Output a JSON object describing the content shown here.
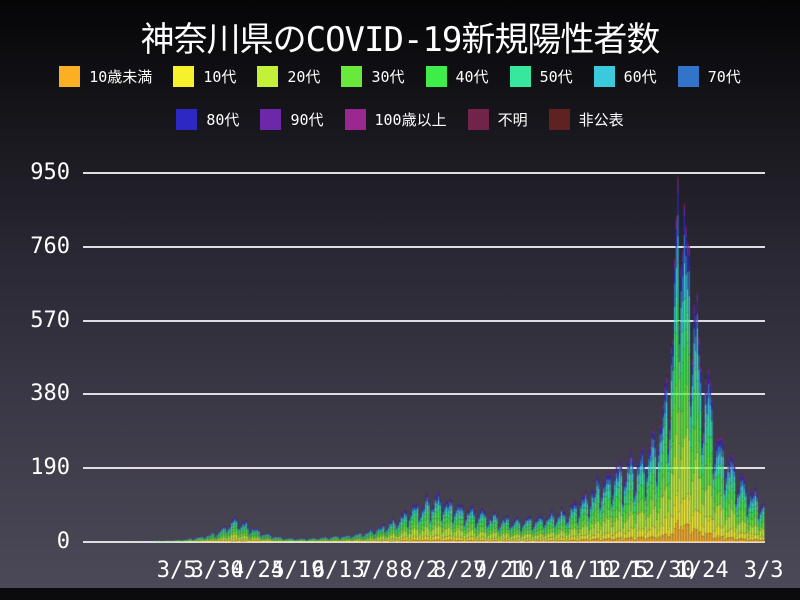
{
  "title": "神奈川県のCOVID-19新規陽性者数",
  "colors": {
    "background_top": "#050506",
    "background_bottom": "#4b4857",
    "grid": "#dfdde3",
    "text": "#ffffff"
  },
  "chart_data": {
    "type": "bar",
    "stacked": true,
    "title": "神奈川県のCOVID-19新規陽性者数",
    "xlabel": "",
    "ylabel": "",
    "grid": "horizontal",
    "legend_position": "top",
    "ylim": [
      0,
      1010
    ],
    "y_ticks": [
      0,
      190,
      380,
      570,
      760,
      950
    ],
    "x_ticks": [
      {
        "label": "3/5",
        "day": 57
      },
      {
        "label": "3/30",
        "day": 82
      },
      {
        "label": "4/24",
        "day": 107
      },
      {
        "label": "5/19",
        "day": 132
      },
      {
        "label": "6/13",
        "day": 157
      },
      {
        "label": "7/8",
        "day": 182
      },
      {
        "label": "8/2",
        "day": 207
      },
      {
        "label": "8/27",
        "day": 232
      },
      {
        "label": "9/21",
        "day": 257
      },
      {
        "label": "10/16",
        "day": 282
      },
      {
        "label": "11/10",
        "day": 307
      },
      {
        "label": "12/5",
        "day": 332
      },
      {
        "label": "12/30",
        "day": 357
      },
      {
        "label": "1/24",
        "day": 382
      },
      {
        "label": "3/3",
        "day": 420
      }
    ],
    "age_groups": [
      {
        "name": "10歳未満",
        "color": "#fbb024",
        "share": 0.05
      },
      {
        "name": "10代",
        "color": "#f6f12b",
        "share": 0.09
      },
      {
        "name": "20代",
        "color": "#c3f139",
        "share": 0.19
      },
      {
        "name": "30代",
        "color": "#69e93c",
        "share": 0.15
      },
      {
        "name": "40代",
        "color": "#3eec4a",
        "share": 0.14
      },
      {
        "name": "50代",
        "color": "#38e79e",
        "share": 0.12
      },
      {
        "name": "60代",
        "color": "#3ac9dd",
        "share": 0.09
      },
      {
        "name": "70代",
        "color": "#3274ca",
        "share": 0.07
      },
      {
        "name": "80代",
        "color": "#2d28c2",
        "share": 0.05
      },
      {
        "name": "90代",
        "color": "#6c28a8",
        "share": 0.028
      },
      {
        "name": "100歳以上",
        "color": "#9b2891",
        "share": 0.005
      },
      {
        "name": "不明",
        "color": "#71234a",
        "share": 0.006
      },
      {
        "name": "非公表",
        "color": "#602121",
        "share": 0.006
      }
    ],
    "legend_row_split": 8,
    "totals_waypoints": [
      [
        0,
        1
      ],
      [
        4,
        0
      ],
      [
        22,
        0
      ],
      [
        27,
        1
      ],
      [
        35,
        1
      ],
      [
        41,
        2
      ],
      [
        47,
        3
      ],
      [
        53,
        4
      ],
      [
        57,
        5
      ],
      [
        63,
        7
      ],
      [
        69,
        11
      ],
      [
        75,
        16
      ],
      [
        81,
        24
      ],
      [
        87,
        40
      ],
      [
        91,
        52
      ],
      [
        95,
        56
      ],
      [
        99,
        48
      ],
      [
        103,
        38
      ],
      [
        107,
        30
      ],
      [
        112,
        22
      ],
      [
        117,
        15
      ],
      [
        122,
        11
      ],
      [
        127,
        9
      ],
      [
        132,
        8
      ],
      [
        137,
        8
      ],
      [
        142,
        9
      ],
      [
        147,
        11
      ],
      [
        153,
        13
      ],
      [
        159,
        15
      ],
      [
        165,
        18
      ],
      [
        171,
        22
      ],
      [
        177,
        28
      ],
      [
        183,
        38
      ],
      [
        189,
        50
      ],
      [
        195,
        64
      ],
      [
        201,
        80
      ],
      [
        207,
        92
      ],
      [
        213,
        104
      ],
      [
        219,
        110
      ],
      [
        225,
        100
      ],
      [
        231,
        90
      ],
      [
        237,
        82
      ],
      [
        245,
        74
      ],
      [
        253,
        64
      ],
      [
        261,
        58
      ],
      [
        269,
        56
      ],
      [
        277,
        60
      ],
      [
        285,
        66
      ],
      [
        293,
        72
      ],
      [
        300,
        82
      ],
      [
        307,
        102
      ],
      [
        314,
        128
      ],
      [
        321,
        152
      ],
      [
        327,
        168
      ],
      [
        334,
        182
      ],
      [
        341,
        196
      ],
      [
        347,
        218
      ],
      [
        353,
        262
      ],
      [
        357,
        310
      ],
      [
        361,
        400
      ],
      [
        364,
        540
      ],
      [
        366,
        780
      ],
      [
        368,
        860
      ],
      [
        370,
        800
      ],
      [
        372,
        720
      ],
      [
        375,
        640
      ],
      [
        378,
        560
      ],
      [
        381,
        480
      ],
      [
        384,
        410
      ],
      [
        387,
        345
      ],
      [
        391,
        285
      ],
      [
        395,
        240
      ],
      [
        399,
        205
      ],
      [
        403,
        175
      ],
      [
        407,
        148
      ],
      [
        411,
        130
      ],
      [
        415,
        115
      ],
      [
        418,
        106
      ],
      [
        420,
        100
      ]
    ],
    "weekly_pattern": [
      1.05,
      0.62,
      0.78,
      0.96,
      1.05,
      1.1,
      1.16
    ],
    "start_weekday": 4,
    "max_drawn_value": 992
  }
}
